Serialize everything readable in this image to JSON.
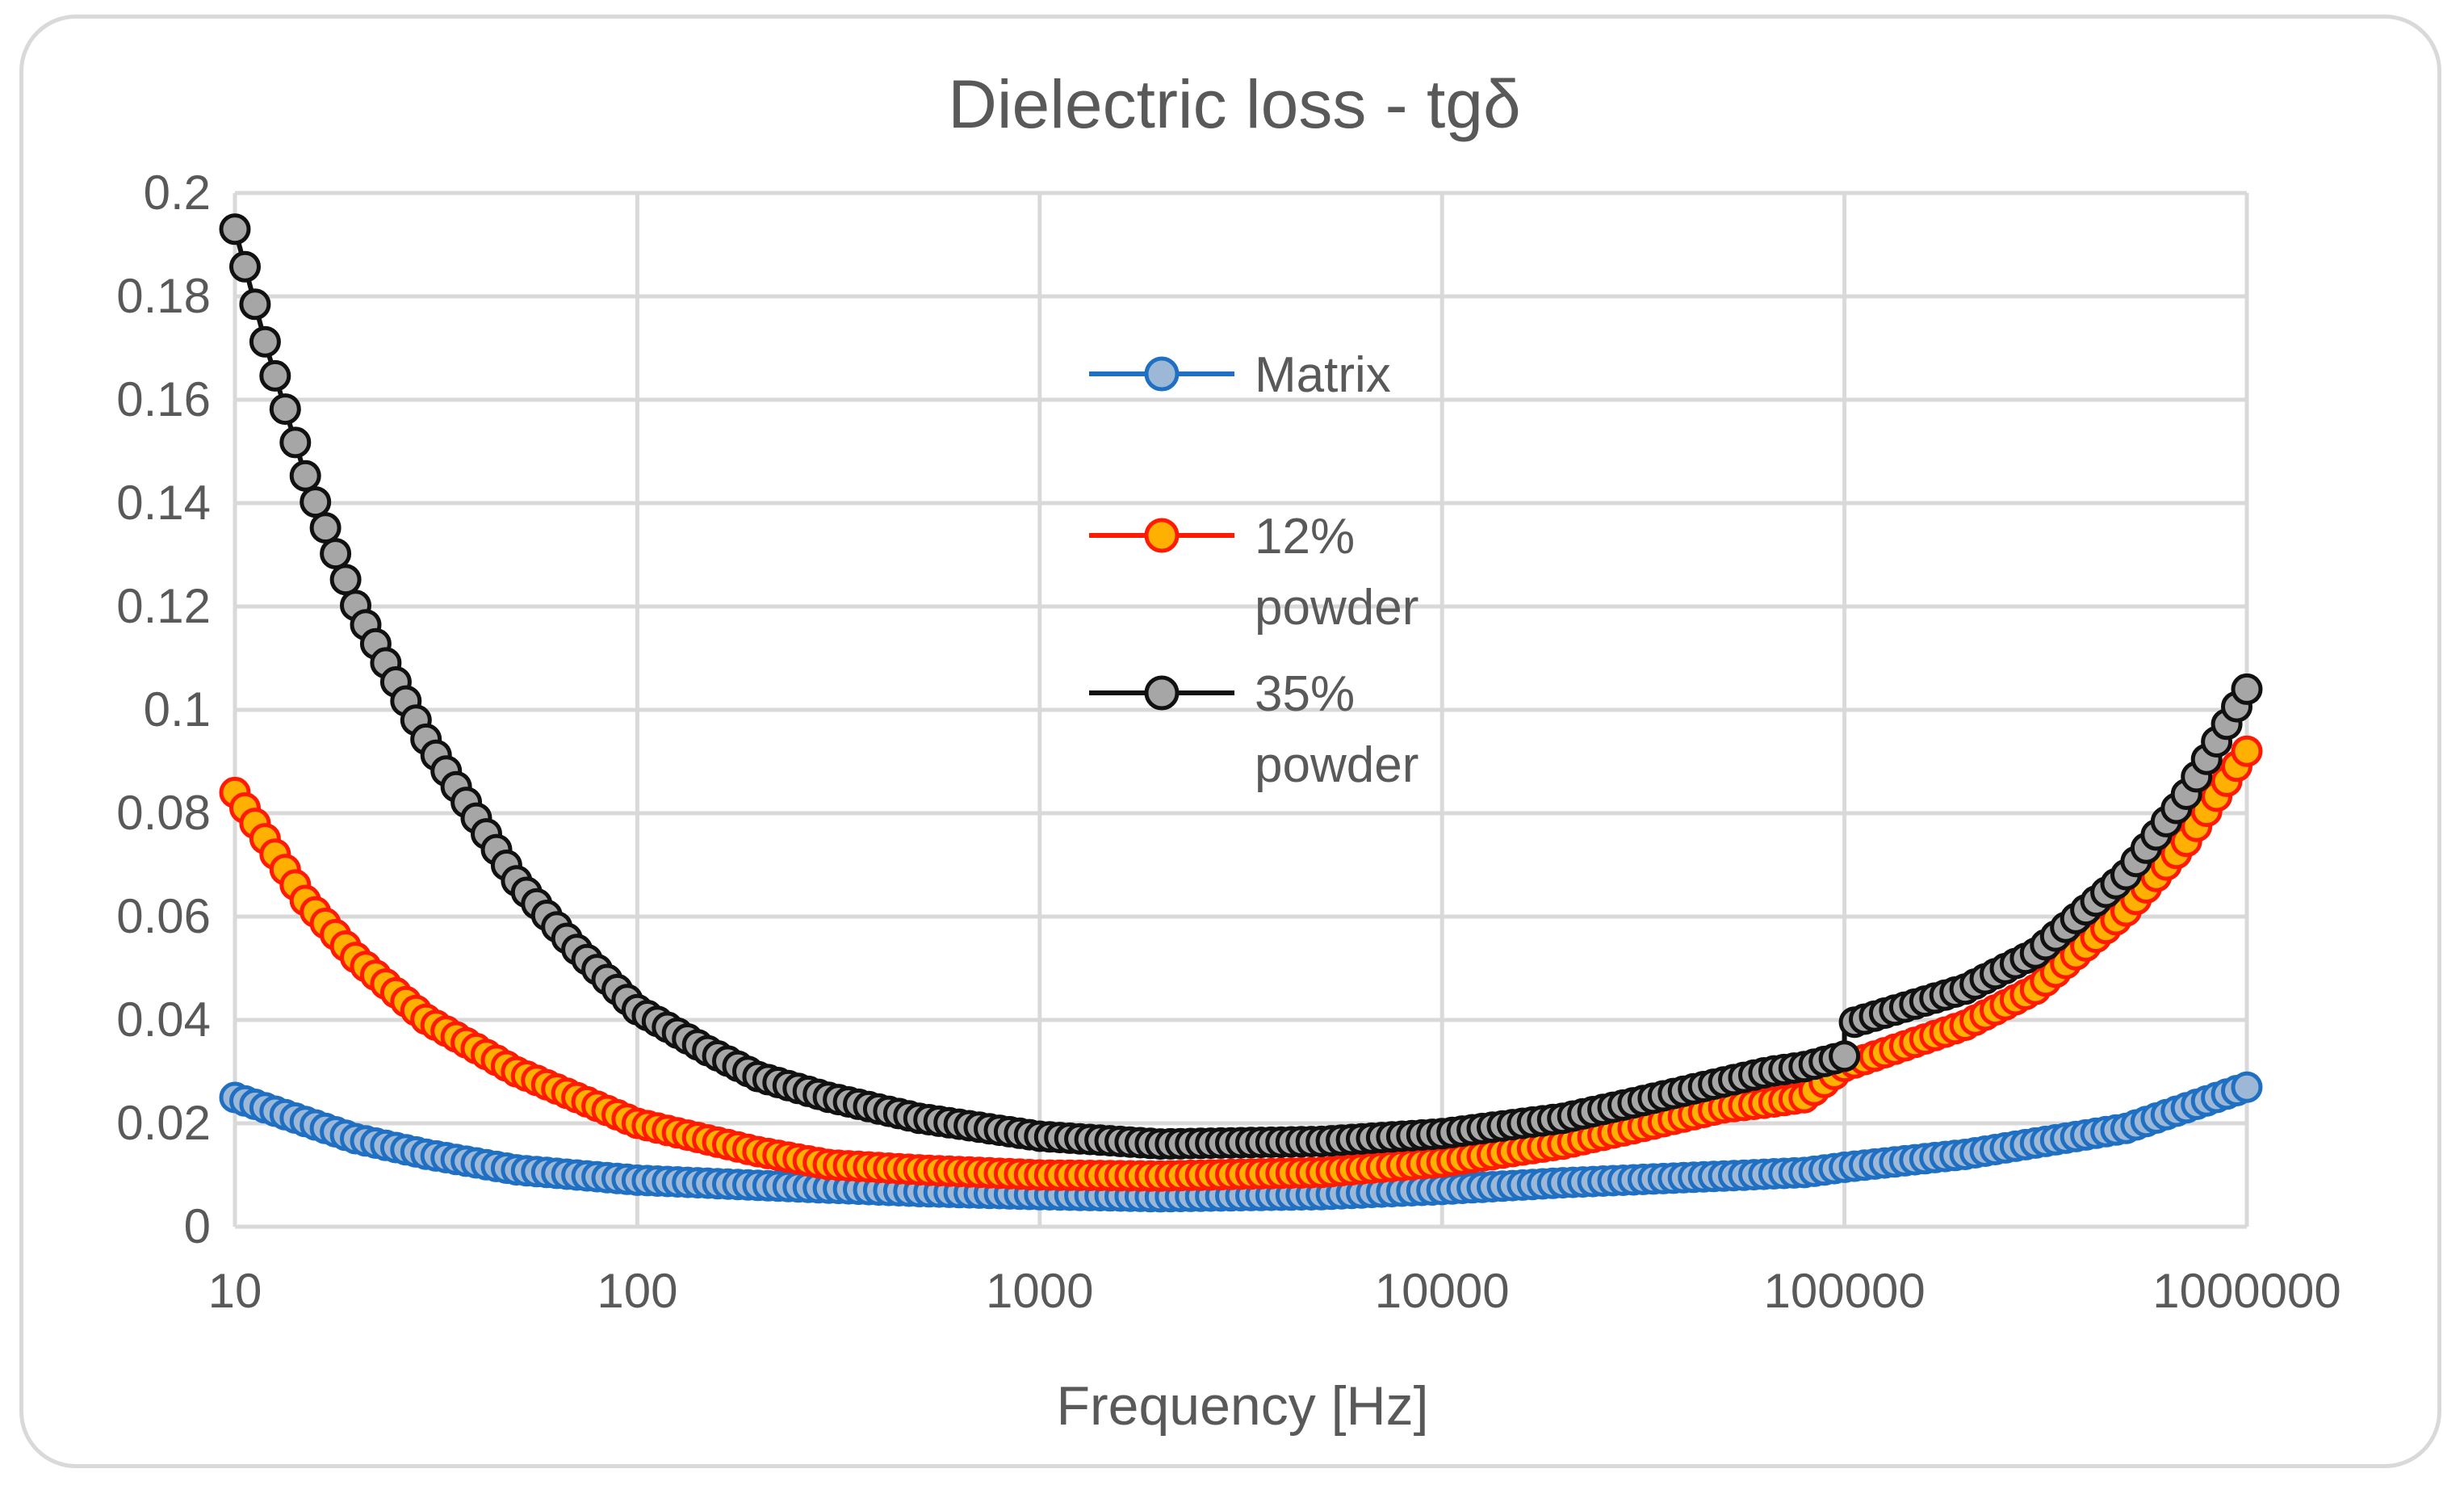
{
  "chart_data": {
    "type": "scatter",
    "title": "Dielectric loss - tgδ",
    "xlabel": "Frequency [Hz]",
    "ylabel": "",
    "xscale": "log",
    "xlim": [
      10,
      1000000
    ],
    "ylim": [
      0,
      0.2
    ],
    "xticks": [
      "10",
      "100",
      "1000",
      "10000",
      "100000",
      "1000000"
    ],
    "yticks": [
      "0",
      "0.02",
      "0.04",
      "0.06",
      "0.08",
      "0.1",
      "0.12",
      "0.14",
      "0.16",
      "0.18",
      "0.2"
    ],
    "grid": true,
    "legend_position": "center",
    "series": [
      {
        "name": "Matrix",
        "line_color": "#1f6fc2",
        "marker_fill": "#9db8d6",
        "points": [
          [
            10,
            0.025
          ],
          [
            20,
            0.017
          ],
          [
            30,
            0.014
          ],
          [
            50,
            0.011
          ],
          [
            100,
            0.009
          ],
          [
            200,
            0.008
          ],
          [
            500,
            0.0068
          ],
          [
            1000,
            0.0062
          ],
          [
            2000,
            0.0058
          ],
          [
            5000,
            0.0062
          ],
          [
            10000,
            0.0072
          ],
          [
            20000,
            0.0085
          ],
          [
            50000,
            0.0098
          ],
          [
            80000,
            0.0105
          ],
          [
            100000,
            0.0115
          ],
          [
            200000,
            0.014
          ],
          [
            500000,
            0.019
          ],
          [
            1000000,
            0.027
          ]
        ]
      },
      {
        "name": "12% powder",
        "line_color": "#ff1a00",
        "marker_fill": "#ffb000",
        "points": [
          [
            10,
            0.084
          ],
          [
            15,
            0.063
          ],
          [
            20,
            0.052
          ],
          [
            30,
            0.04
          ],
          [
            50,
            0.03
          ],
          [
            100,
            0.02
          ],
          [
            200,
            0.0145
          ],
          [
            300,
            0.012
          ],
          [
            500,
            0.011
          ],
          [
            1000,
            0.01
          ],
          [
            2000,
            0.0098
          ],
          [
            5000,
            0.0105
          ],
          [
            10000,
            0.0125
          ],
          [
            20000,
            0.016
          ],
          [
            30000,
            0.019
          ],
          [
            50000,
            0.023
          ],
          [
            65000,
            0.024
          ],
          [
            80000,
            0.025
          ],
          [
            100000,
            0.031
          ],
          [
            200000,
            0.039
          ],
          [
            300000,
            0.046
          ],
          [
            500000,
            0.061
          ],
          [
            700000,
            0.074
          ],
          [
            1000000,
            0.092
          ]
        ]
      },
      {
        "name": "35% powder",
        "line_color": "#111111",
        "marker_fill": "#a6a6a6",
        "points": [
          [
            10,
            0.193
          ],
          [
            12,
            0.17
          ],
          [
            15,
            0.145
          ],
          [
            20,
            0.12
          ],
          [
            30,
            0.094
          ],
          [
            50,
            0.067
          ],
          [
            70,
            0.054
          ],
          [
            100,
            0.042
          ],
          [
            150,
            0.034
          ],
          [
            200,
            0.029
          ],
          [
            300,
            0.025
          ],
          [
            500,
            0.021
          ],
          [
            1000,
            0.0175
          ],
          [
            2000,
            0.016
          ],
          [
            5000,
            0.0165
          ],
          [
            10000,
            0.018
          ],
          [
            20000,
            0.021
          ],
          [
            30000,
            0.024
          ],
          [
            50000,
            0.028
          ],
          [
            65000,
            0.03
          ],
          [
            80000,
            0.031
          ],
          [
            100000,
            0.033
          ],
          [
            100000,
            0.039
          ],
          [
            200000,
            0.046
          ],
          [
            300000,
            0.053
          ],
          [
            500000,
            0.068
          ],
          [
            700000,
            0.083
          ],
          [
            1000000,
            0.104
          ]
        ]
      }
    ],
    "legend": [
      {
        "line1": "Matrix",
        "line2": ""
      },
      {
        "line1": "12%",
        "line2": "powder"
      },
      {
        "line1": "35%",
        "line2": "powder"
      }
    ]
  }
}
